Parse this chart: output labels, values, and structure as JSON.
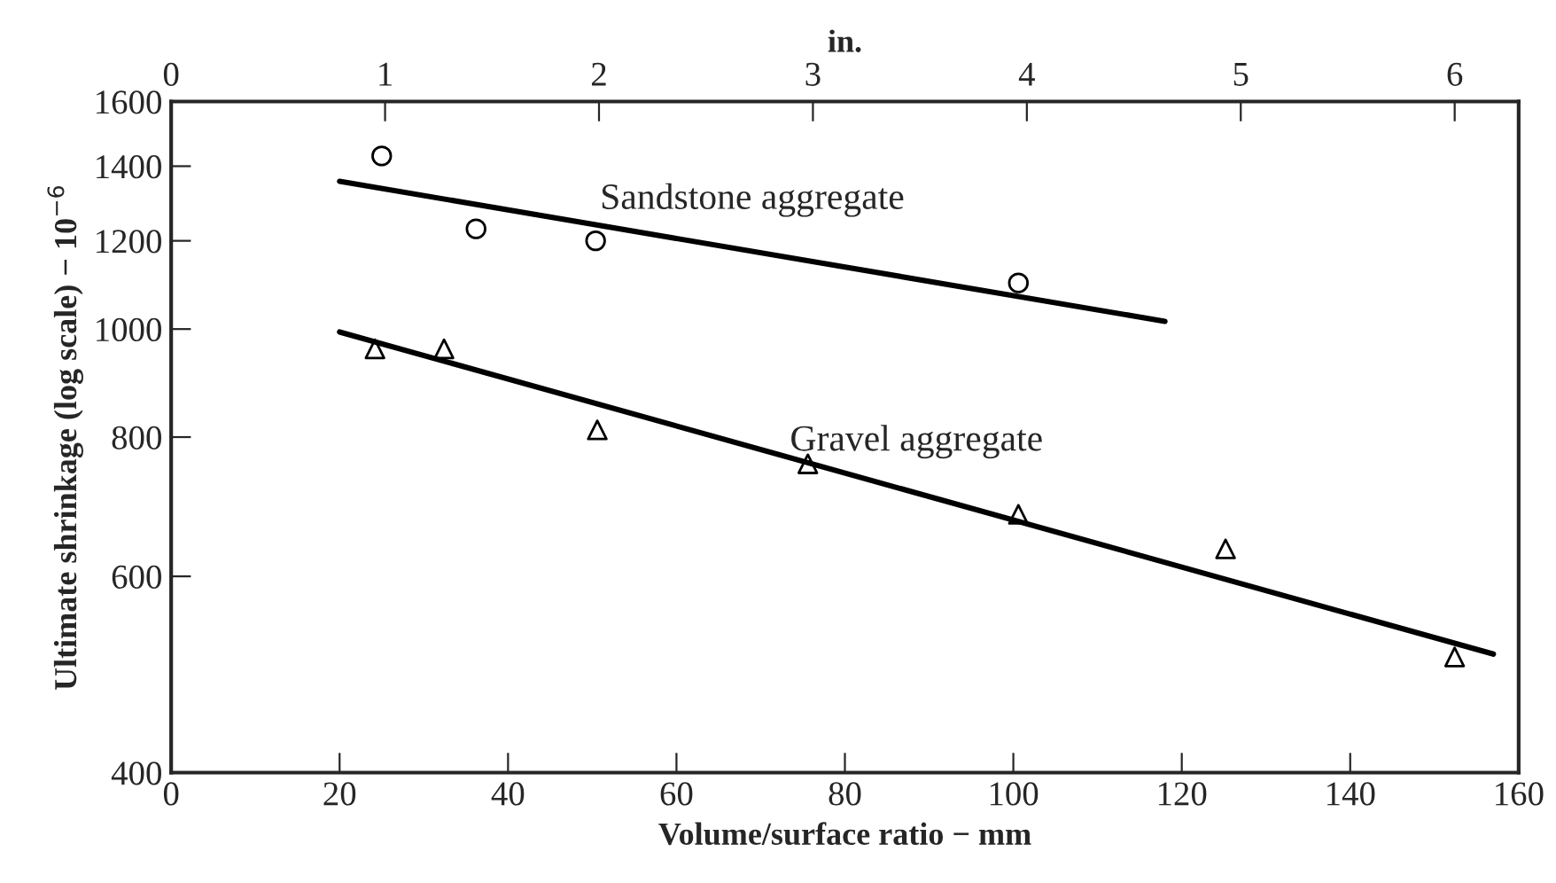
{
  "chart_data": {
    "type": "scatter",
    "xlabel": "Volume/surface ratio − mm",
    "ylabel": "Ultimate shrinkage (log scale) − 10$^{−6}$",
    "x2label": "in.",
    "series": [
      {
        "marker": "circle",
        "color": "#000000",
        "x": [
          25,
          36.2,
          50.4,
          100.6
        ],
        "values": [
          1430,
          1230,
          1200,
          1100
        ]
      },
      {
        "marker": "triangle",
        "color": "#000000",
        "x": [
          24.2,
          32.4,
          50.6,
          75.6,
          100.6,
          125.2,
          152.4
        ],
        "values": [
          960,
          960,
          812,
          757,
          682,
          635,
          508
        ]
      },
      {
        "type": "line",
        "name": "Sandstone aggregate",
        "marker": "none",
        "color": "#000000",
        "x": [
          20,
          118
        ],
        "values": [
          1357,
          1016
        ]
      },
      {
        "type": "line",
        "name": "Gravel aggregate",
        "marker": "none",
        "color": "#000000",
        "x": [
          20,
          157
        ],
        "values": [
          994,
          511
        ]
      }
    ],
    "log": "y",
    "xlim": [
      0,
      160
    ],
    "xticks": [
      0,
      20,
      40,
      60,
      80,
      100,
      120,
      140,
      160
    ],
    "ylim": [
      400,
      1600
    ],
    "yticks": [
      400,
      600,
      800,
      1000,
      1200,
      1400,
      1600
    ],
    "x2lim": [
      0,
      6.299
    ],
    "x2ticks": [
      0,
      1,
      2,
      3,
      4,
      5,
      6
    ],
    "grid": false,
    "legend": false
  }
}
